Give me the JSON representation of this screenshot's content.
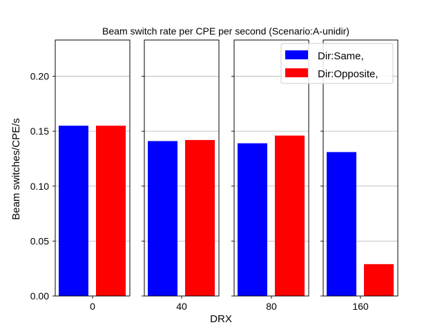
{
  "chart_data": {
    "type": "bar",
    "title": "Beam switch rate per CPE per second (Scenario:A-unidir)",
    "xlabel": "DRX",
    "ylabel": "Beam switches/CPE/s",
    "ylim": [
      0,
      0.233
    ],
    "yticks": [
      "0.00",
      "0.05",
      "0.10",
      "0.15",
      "0.20"
    ],
    "grid": true,
    "legend_position": "top-right",
    "categories": [
      "0",
      "40",
      "80",
      "160"
    ],
    "series": [
      {
        "name": "Dir:Same,",
        "color": "#0000ff",
        "values": [
          0.155,
          0.141,
          0.139,
          0.131
        ]
      },
      {
        "name": "Dir:Opposite,",
        "color": "#ff0000",
        "values": [
          0.155,
          0.142,
          0.146,
          0.029
        ]
      }
    ]
  }
}
